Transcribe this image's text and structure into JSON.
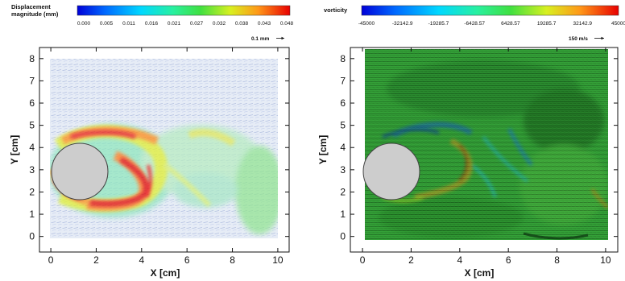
{
  "chart_data": [
    {
      "type": "heatmap",
      "colorbar_title_lines": [
        "Displacement",
        "magnitude (mm)"
      ],
      "colorbar_ticks": [
        "0.000",
        "0.005",
        "0.011",
        "0.016",
        "0.021",
        "0.027",
        "0.032",
        "0.038",
        "0.043",
        "0.048"
      ],
      "colorbar_range": [
        0,
        0.048
      ],
      "reference_vector_label": "0.1 mm",
      "xlabel": "X [cm]",
      "ylabel": "Y [cm]",
      "xlim": [
        -0.5,
        10.5
      ],
      "ylim": [
        -0.7,
        8.5
      ],
      "xticks": [
        0,
        2,
        4,
        6,
        8,
        10
      ],
      "yticks": [
        0,
        1,
        2,
        3,
        4,
        5,
        6,
        7,
        8
      ],
      "cylinder": {
        "center": [
          1.2,
          3.0
        ],
        "radius": 1.2
      },
      "field_extent": {
        "x": [
          0,
          9.6
        ],
        "y": [
          0.2,
          7.8
        ]
      }
    },
    {
      "type": "heatmap",
      "colorbar_title_lines": [
        "vorticity"
      ],
      "colorbar_ticks": [
        "-45000",
        "-32142.9",
        "-19285.7",
        "-6428.57",
        "6428.57",
        "19285.7",
        "32142.9",
        "45000"
      ],
      "colorbar_range": [
        -45000,
        45000
      ],
      "reference_vector_label": "150 m/s",
      "xlabel": "X [cm]",
      "ylabel": "Y [cm]",
      "xlim": [
        -0.5,
        10.5
      ],
      "ylim": [
        -0.7,
        8.5
      ],
      "xticks": [
        0,
        2,
        4,
        6,
        8,
        10
      ],
      "yticks": [
        0,
        1,
        2,
        3,
        4,
        5,
        6,
        7,
        8
      ],
      "cylinder": {
        "center": [
          1.2,
          3.0
        ],
        "radius": 1.2
      },
      "field_extent": {
        "x": [
          0,
          10.3
        ],
        "y": [
          0.2,
          8.2
        ]
      }
    }
  ]
}
